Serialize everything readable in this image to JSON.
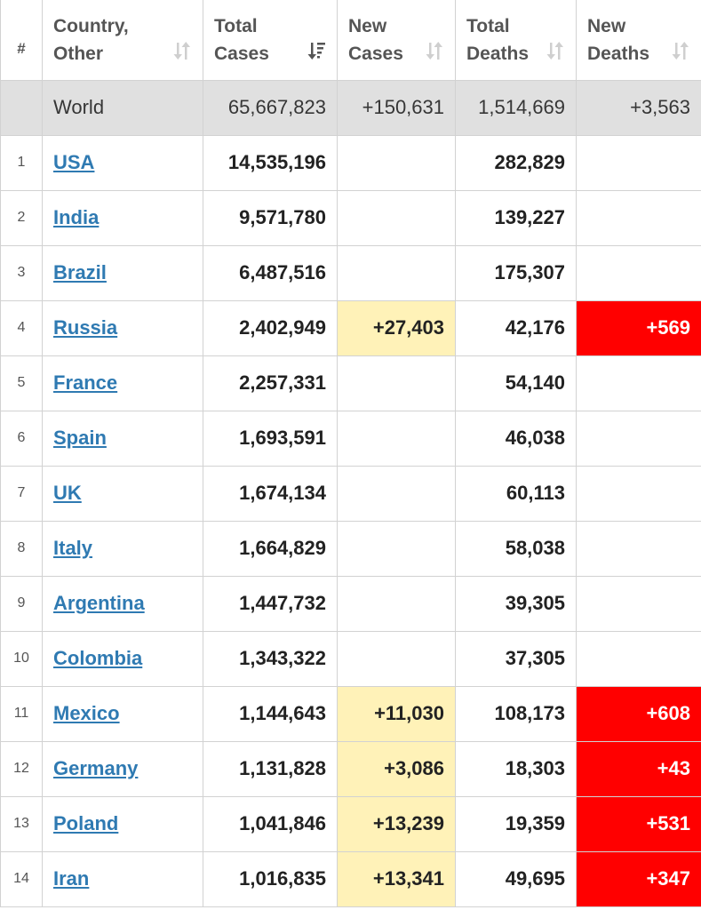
{
  "header": {
    "num": "#",
    "country": "Country, Other",
    "total_cases": "Total Cases",
    "new_cases": "New Cases",
    "total_deaths": "Total Deaths",
    "new_deaths": "New Deaths"
  },
  "world": {
    "country": "World",
    "total_cases": "65,667,823",
    "new_cases": "+150,631",
    "total_deaths": "1,514,669",
    "new_deaths": "+3,563"
  },
  "rows": [
    {
      "num": "1",
      "country": "USA",
      "total_cases": "14,535,196",
      "new_cases": "",
      "total_deaths": "282,829",
      "new_deaths": ""
    },
    {
      "num": "2",
      "country": "India",
      "total_cases": "9,571,780",
      "new_cases": "",
      "total_deaths": "139,227",
      "new_deaths": ""
    },
    {
      "num": "3",
      "country": "Brazil",
      "total_cases": "6,487,516",
      "new_cases": "",
      "total_deaths": "175,307",
      "new_deaths": ""
    },
    {
      "num": "4",
      "country": "Russia",
      "total_cases": "2,402,949",
      "new_cases": "+27,403",
      "total_deaths": "42,176",
      "new_deaths": "+569"
    },
    {
      "num": "5",
      "country": "France",
      "total_cases": "2,257,331",
      "new_cases": "",
      "total_deaths": "54,140",
      "new_deaths": ""
    },
    {
      "num": "6",
      "country": "Spain",
      "total_cases": "1,693,591",
      "new_cases": "",
      "total_deaths": "46,038",
      "new_deaths": ""
    },
    {
      "num": "7",
      "country": "UK",
      "total_cases": "1,674,134",
      "new_cases": "",
      "total_deaths": "60,113",
      "new_deaths": ""
    },
    {
      "num": "8",
      "country": "Italy",
      "total_cases": "1,664,829",
      "new_cases": "",
      "total_deaths": "58,038",
      "new_deaths": ""
    },
    {
      "num": "9",
      "country": "Argentina",
      "total_cases": "1,447,732",
      "new_cases": "",
      "total_deaths": "39,305",
      "new_deaths": ""
    },
    {
      "num": "10",
      "country": "Colombia",
      "total_cases": "1,343,322",
      "new_cases": "",
      "total_deaths": "37,305",
      "new_deaths": ""
    },
    {
      "num": "11",
      "country": "Mexico",
      "total_cases": "1,144,643",
      "new_cases": "+11,030",
      "total_deaths": "108,173",
      "new_deaths": "+608"
    },
    {
      "num": "12",
      "country": "Germany",
      "total_cases": "1,131,828",
      "new_cases": "+3,086",
      "total_deaths": "18,303",
      "new_deaths": "+43"
    },
    {
      "num": "13",
      "country": "Poland",
      "total_cases": "1,041,846",
      "new_cases": "+13,239",
      "total_deaths": "19,359",
      "new_deaths": "+531"
    },
    {
      "num": "14",
      "country": "Iran",
      "total_cases": "1,016,835",
      "new_cases": "+13,341",
      "total_deaths": "49,695",
      "new_deaths": "+347"
    }
  ],
  "colors": {
    "link": "#2f7ab2",
    "new_cases_highlight": "#fff2b8",
    "new_deaths_highlight": "#ff0000",
    "world_row_bg": "#e0e0e0"
  },
  "icons": {
    "sort_default": "sort-arrows-icon",
    "sort_active": "sort-desc-icon"
  }
}
